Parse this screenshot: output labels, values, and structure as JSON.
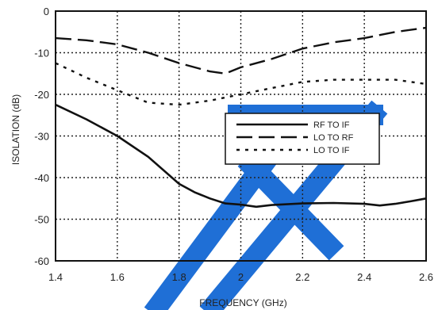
{
  "chart_data": {
    "type": "line",
    "title": "",
    "xlabel": "FREQUENCY (GHz)",
    "ylabel": "ISOLATION (dB)",
    "xlim": [
      1.4,
      2.6
    ],
    "ylim": [
      -60,
      0
    ],
    "xticks": [
      1.4,
      1.6,
      1.8,
      2.0,
      2.2,
      2.4,
      2.6
    ],
    "xtick_labels": [
      "1.4",
      "1.6",
      "1.8",
      "2",
      "2.2",
      "2.4",
      "2.6"
    ],
    "yticks": [
      0,
      -10,
      -20,
      -30,
      -40,
      -50,
      -60
    ],
    "ytick_labels": [
      "0",
      "-10",
      "-20",
      "-30",
      "-40",
      "-50",
      "-60"
    ],
    "grid": true,
    "legend_position": "center-right",
    "series": [
      {
        "name": "RF TO IF",
        "style": "solid",
        "color": "#111111",
        "x": [
          1.4,
          1.5,
          1.6,
          1.7,
          1.8,
          1.85,
          1.9,
          1.95,
          2.0,
          2.05,
          2.1,
          2.2,
          2.3,
          2.4,
          2.45,
          2.5,
          2.55,
          2.6
        ],
        "y": [
          -22.5,
          -26,
          -30,
          -35,
          -41.5,
          -43.5,
          -45,
          -46.2,
          -46.5,
          -47,
          -46.6,
          -46.2,
          -46.1,
          -46.3,
          -46.7,
          -46.3,
          -45.7,
          -45
        ]
      },
      {
        "name": "LO TO RF",
        "style": "dashed",
        "color": "#111111",
        "x": [
          1.4,
          1.5,
          1.6,
          1.7,
          1.8,
          1.9,
          1.95,
          2.0,
          2.1,
          2.2,
          2.3,
          2.4,
          2.5,
          2.6
        ],
        "y": [
          -6.5,
          -7,
          -8,
          -10,
          -12.5,
          -14.5,
          -15,
          -13.5,
          -11.5,
          -9,
          -7.5,
          -6.5,
          -5,
          -4
        ]
      },
      {
        "name": "LO TO IF",
        "style": "dotted",
        "color": "#111111",
        "x": [
          1.4,
          1.5,
          1.6,
          1.7,
          1.8,
          1.9,
          2.0,
          2.1,
          2.2,
          2.3,
          2.4,
          2.5,
          2.6
        ],
        "y": [
          -12.5,
          -16,
          -19,
          -22,
          -22.5,
          -21.5,
          -20,
          -18.5,
          -17,
          -16.5,
          -16.5,
          -16.5,
          -17.5
        ]
      }
    ],
    "watermark_color": "#1f6fd6"
  }
}
